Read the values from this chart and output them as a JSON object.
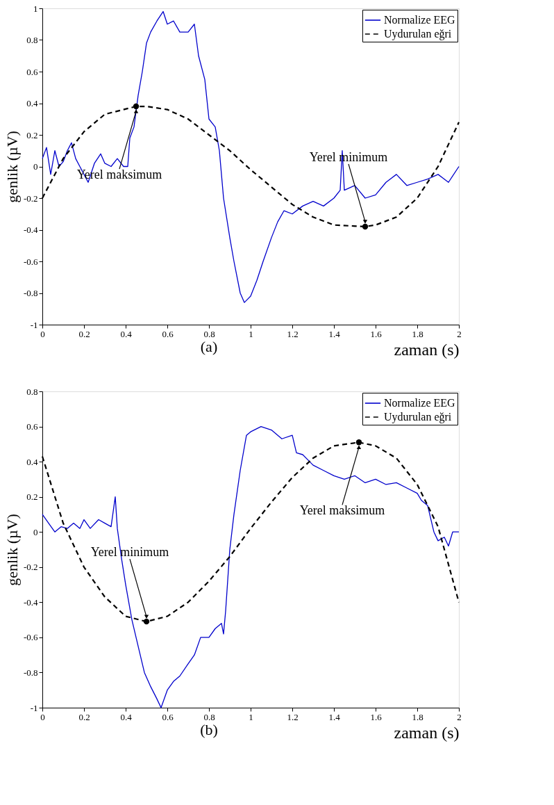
{
  "chart_data": [
    {
      "type": "line",
      "title": "(a)",
      "xlabel": "zaman (s)",
      "ylabel": "genlik (µV)",
      "xlim": [
        0,
        2
      ],
      "ylim": [
        -1,
        1
      ],
      "xticks": [
        0,
        0.2,
        0.4,
        0.6,
        0.8,
        1,
        1.2,
        1.4,
        1.6,
        1.8,
        2
      ],
      "yticks": [
        -1,
        -0.8,
        -0.6,
        -0.4,
        -0.2,
        0,
        0.2,
        0.4,
        0.6,
        0.8,
        1
      ],
      "grid": false,
      "legend": "top right",
      "series": [
        {
          "name": "Normalize EEG",
          "color": "#0000cc",
          "line_style": "solid",
          "x": [
            0,
            0.02,
            0.04,
            0.06,
            0.08,
            0.1,
            0.12,
            0.14,
            0.16,
            0.18,
            0.2,
            0.22,
            0.25,
            0.28,
            0.3,
            0.33,
            0.36,
            0.39,
            0.41,
            0.42,
            0.44,
            0.46,
            0.48,
            0.5,
            0.52,
            0.55,
            0.58,
            0.6,
            0.63,
            0.66,
            0.7,
            0.73,
            0.75,
            0.78,
            0.8,
            0.83,
            0.85,
            0.87,
            0.9,
            0.92,
            0.95,
            0.97,
            1.0,
            1.03,
            1.06,
            1.1,
            1.13,
            1.16,
            1.2,
            1.25,
            1.3,
            1.35,
            1.4,
            1.43,
            1.44,
            1.45,
            1.5,
            1.55,
            1.6,
            1.65,
            1.7,
            1.75,
            1.8,
            1.85,
            1.9,
            1.95,
            2.0
          ],
          "values": [
            0.05,
            0.12,
            -0.05,
            0.1,
            0.0,
            0.03,
            0.1,
            0.15,
            0.05,
            0.0,
            -0.05,
            -0.1,
            0.02,
            0.08,
            0.02,
            0.0,
            0.05,
            0.0,
            0.0,
            0.18,
            0.25,
            0.45,
            0.6,
            0.78,
            0.85,
            0.92,
            0.98,
            0.9,
            0.92,
            0.85,
            0.85,
            0.9,
            0.7,
            0.55,
            0.3,
            0.25,
            0.1,
            -0.2,
            -0.45,
            -0.6,
            -0.8,
            -0.86,
            -0.82,
            -0.72,
            -0.6,
            -0.45,
            -0.35,
            -0.28,
            -0.3,
            -0.25,
            -0.22,
            -0.25,
            -0.2,
            -0.15,
            0.1,
            -0.15,
            -0.12,
            -0.2,
            -0.18,
            -0.1,
            -0.05,
            -0.12,
            -0.1,
            -0.08,
            -0.05,
            -0.1,
            0.0
          ]
        },
        {
          "name": "Uydurulan eğri",
          "color": "#000000",
          "line_style": "dashed",
          "x": [
            0,
            0.1,
            0.2,
            0.3,
            0.45,
            0.5,
            0.6,
            0.7,
            0.8,
            0.9,
            1.0,
            1.1,
            1.2,
            1.3,
            1.4,
            1.55,
            1.6,
            1.7,
            1.8,
            1.9,
            2.0
          ],
          "values": [
            -0.2,
            0.05,
            0.22,
            0.33,
            0.38,
            0.38,
            0.36,
            0.3,
            0.2,
            0.1,
            -0.02,
            -0.13,
            -0.24,
            -0.32,
            -0.37,
            -0.38,
            -0.37,
            -0.32,
            -0.2,
            0.0,
            0.28
          ]
        },
        {
          "type": "scatter",
          "color": "#000000",
          "marker": "circle",
          "x": [
            0.45,
            1.55
          ],
          "values": [
            0.38,
            -0.38
          ]
        }
      ],
      "annotations": [
        {
          "text": "Yerel maksimum",
          "x": 0.45,
          "y": 0.38
        },
        {
          "text": "Yerel minimum",
          "x": 1.55,
          "y": -0.38
        }
      ]
    },
    {
      "type": "line",
      "title": "(b)",
      "xlabel": "zaman (s)",
      "ylabel": "genlik (µV)",
      "xlim": [
        0,
        2
      ],
      "ylim": [
        -1,
        0.8
      ],
      "xticks": [
        0,
        0.2,
        0.4,
        0.6,
        0.8,
        1,
        1.2,
        1.4,
        1.6,
        1.8,
        2
      ],
      "yticks": [
        -1,
        -0.8,
        -0.6,
        -0.4,
        -0.2,
        0,
        0.2,
        0.4,
        0.6,
        0.8
      ],
      "grid": false,
      "legend": "top right",
      "series": [
        {
          "name": "Normalize EEG",
          "color": "#0000cc",
          "line_style": "solid",
          "x": [
            0,
            0.03,
            0.06,
            0.09,
            0.12,
            0.15,
            0.18,
            0.2,
            0.23,
            0.27,
            0.3,
            0.33,
            0.35,
            0.36,
            0.38,
            0.4,
            0.43,
            0.46,
            0.49,
            0.52,
            0.55,
            0.57,
            0.6,
            0.63,
            0.66,
            0.7,
            0.73,
            0.76,
            0.8,
            0.83,
            0.86,
            0.87,
            0.88,
            0.9,
            0.92,
            0.95,
            0.98,
            1.0,
            1.05,
            1.1,
            1.15,
            1.2,
            1.22,
            1.25,
            1.3,
            1.35,
            1.4,
            1.45,
            1.5,
            1.55,
            1.6,
            1.65,
            1.7,
            1.75,
            1.8,
            1.82,
            1.85,
            1.88,
            1.9,
            1.93,
            1.95,
            1.97,
            2.0
          ],
          "values": [
            0.1,
            0.05,
            0.0,
            0.03,
            0.02,
            0.05,
            0.02,
            0.07,
            0.02,
            0.07,
            0.05,
            0.03,
            0.2,
            0.02,
            -0.15,
            -0.3,
            -0.5,
            -0.65,
            -0.8,
            -0.88,
            -0.95,
            -1.0,
            -0.9,
            -0.85,
            -0.82,
            -0.75,
            -0.7,
            -0.6,
            -0.6,
            -0.55,
            -0.52,
            -0.58,
            -0.45,
            -0.1,
            0.1,
            0.35,
            0.55,
            0.57,
            0.6,
            0.58,
            0.53,
            0.55,
            0.45,
            0.44,
            0.38,
            0.35,
            0.32,
            0.3,
            0.32,
            0.28,
            0.3,
            0.27,
            0.28,
            0.25,
            0.22,
            0.18,
            0.15,
            0.0,
            -0.05,
            -0.03,
            -0.08,
            0.0,
            0.0
          ]
        },
        {
          "name": "Uydurulan eğri",
          "color": "#000000",
          "line_style": "dashed",
          "x": [
            0,
            0.1,
            0.2,
            0.3,
            0.4,
            0.5,
            0.6,
            0.7,
            0.8,
            0.9,
            1.0,
            1.1,
            1.2,
            1.3,
            1.4,
            1.52,
            1.6,
            1.7,
            1.8,
            1.9,
            2.0
          ],
          "values": [
            0.43,
            0.05,
            -0.2,
            -0.37,
            -0.48,
            -0.51,
            -0.48,
            -0.4,
            -0.28,
            -0.14,
            0.02,
            0.17,
            0.31,
            0.42,
            0.49,
            0.51,
            0.49,
            0.42,
            0.27,
            0.03,
            -0.4
          ]
        },
        {
          "type": "scatter",
          "color": "#000000",
          "marker": "circle",
          "x": [
            0.5,
            1.52
          ],
          "values": [
            -0.51,
            0.51
          ]
        }
      ],
      "annotations": [
        {
          "text": "Yerel minimum",
          "x": 0.5,
          "y": -0.51
        },
        {
          "text": "Yerel maksimum",
          "x": 1.52,
          "y": 0.51
        }
      ]
    }
  ]
}
